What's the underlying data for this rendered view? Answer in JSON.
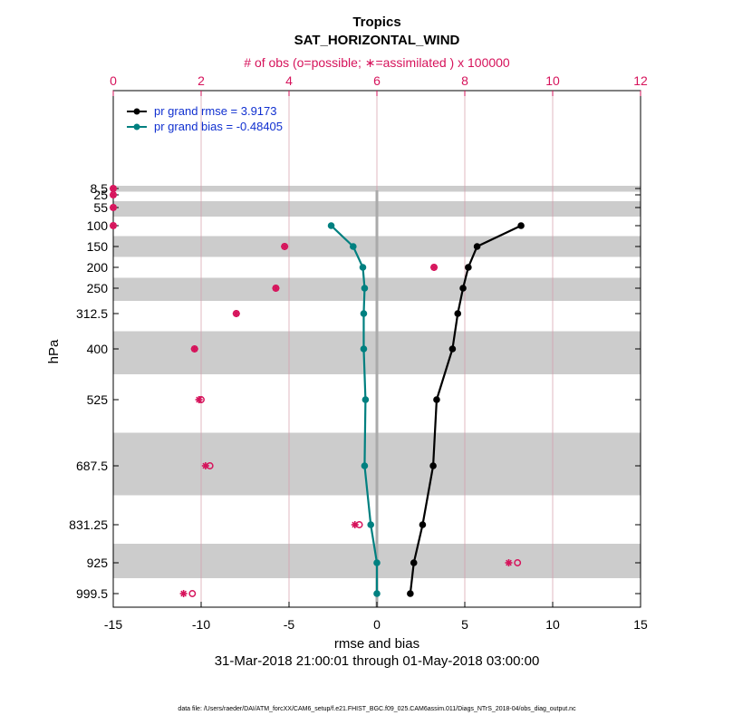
{
  "header": {
    "region": "Tropics",
    "variable": "SAT_HORIZONTAL_WIND",
    "obs_axis_title": "# of obs (o=possible; ∗=assimilated ) x 100000"
  },
  "footer": {
    "datafile": "data file: /Users/raeder/DAI/ATM_forcXX/CAM6_setup/f.e21.FHIST_BGC.f09_025.CAM6assim.011/Diags_NTrS_2018-04/obs_diag_output.nc"
  },
  "colors": {
    "rmse": "#000000",
    "bias": "#008080",
    "obs": "#d6135b",
    "band": "#cccccc",
    "legend_text": "#1030d0"
  },
  "chart_data": {
    "type": "line",
    "xlabel": "rmse and bias",
    "ylabel": "hPa",
    "date_range": "31-Mar-2018 21:00:01 through 01-May-2018 03:00:00",
    "xlim": [
      -15,
      15
    ],
    "x_ticks": [
      -15,
      -10,
      -5,
      0,
      5,
      10,
      15
    ],
    "x_tick_labels": [
      "-15",
      "-10",
      "-5",
      "0",
      "5",
      "10",
      "15"
    ],
    "top_axis": {
      "lim": [
        0,
        12
      ],
      "ticks": [
        0,
        2,
        4,
        6,
        8,
        10,
        12
      ],
      "tick_labels": [
        "0",
        "2",
        "4",
        "6",
        "8",
        "10",
        "12"
      ]
    },
    "levels": [
      999.5,
      925,
      831.25,
      687.5,
      525,
      400,
      312.5,
      250,
      200,
      150,
      100,
      55,
      25,
      8.5
    ],
    "level_labels": [
      "999.5",
      "925",
      "831.25",
      "687.5",
      "525",
      "400",
      "312.5",
      "250",
      "200",
      "150",
      "100",
      "55",
      "25",
      "8.5"
    ],
    "series": [
      {
        "name": "pr grand rmse = 3.9173",
        "color": "#000000",
        "levels": [
          999.5,
          925,
          831.25,
          687.5,
          525,
          400,
          312.5,
          250,
          200,
          150,
          100
        ],
        "values": [
          1.9,
          2.1,
          2.6,
          3.2,
          3.4,
          4.3,
          4.6,
          4.9,
          5.2,
          5.7,
          8.2
        ]
      },
      {
        "name": "pr grand bias = -0.48405",
        "color": "#008080",
        "levels": [
          999.5,
          925,
          831.25,
          687.5,
          525,
          400,
          312.5,
          250,
          200,
          150,
          100
        ],
        "values": [
          0.0,
          0.0,
          -0.35,
          -0.7,
          -0.65,
          -0.75,
          -0.75,
          -0.7,
          -0.8,
          -1.35,
          -2.6
        ]
      }
    ],
    "obs_possible": {
      "levels": [
        999.5,
        925,
        831.25,
        687.5,
        525,
        400,
        312.5,
        250,
        200,
        150,
        100,
        55,
        25,
        8.5
      ],
      "values": [
        1.8,
        9.2,
        5.6,
        2.2,
        2.0,
        1.85,
        2.8,
        3.7,
        7.3,
        3.9,
        0.0,
        0.0,
        0.0,
        0.0
      ]
    },
    "obs_assimilated": {
      "levels": [
        999.5,
        925,
        831.25,
        687.5,
        525,
        400,
        312.5,
        250,
        200,
        150,
        100,
        55,
        25,
        8.5
      ],
      "values": [
        1.6,
        9.0,
        5.5,
        2.1,
        1.95,
        1.85,
        2.8,
        3.7,
        7.3,
        3.9,
        0.0,
        0.0,
        0.0,
        0.0
      ]
    },
    "grid": "vertical",
    "legend": "top-left"
  }
}
